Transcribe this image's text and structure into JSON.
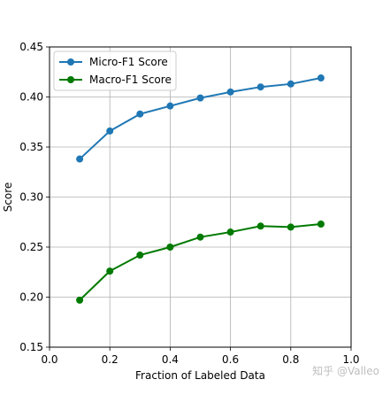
{
  "chart_data": {
    "type": "line",
    "title": "",
    "xlabel": "Fraction of Labeled Data",
    "ylabel": "Score",
    "xlim": [
      0.0,
      1.0
    ],
    "ylim": [
      0.15,
      0.45
    ],
    "xticks": [
      0.0,
      0.2,
      0.4,
      0.6,
      0.8,
      1.0
    ],
    "xtick_labels": [
      "0.0",
      "0.2",
      "0.4",
      "0.6",
      "0.8",
      "1.0"
    ],
    "yticks": [
      0.15,
      0.2,
      0.25,
      0.3,
      0.35,
      0.4,
      0.45
    ],
    "ytick_labels": [
      "0.15",
      "0.20",
      "0.25",
      "0.30",
      "0.35",
      "0.40",
      "0.45"
    ],
    "grid": true,
    "legend_position": "top-left",
    "x": [
      0.1,
      0.2,
      0.3,
      0.4,
      0.5,
      0.6,
      0.7,
      0.8,
      0.9
    ],
    "series": [
      {
        "name": "Micro-F1 Score",
        "color": "#1f77b4",
        "values": [
          0.338,
          0.366,
          0.383,
          0.391,
          0.399,
          0.405,
          0.41,
          0.413,
          0.419
        ]
      },
      {
        "name": "Macro-F1 Score",
        "color": "#007a00",
        "values": [
          0.197,
          0.226,
          0.242,
          0.25,
          0.26,
          0.265,
          0.271,
          0.27,
          0.273
        ]
      }
    ]
  },
  "watermark": "知乎 @Valleo"
}
